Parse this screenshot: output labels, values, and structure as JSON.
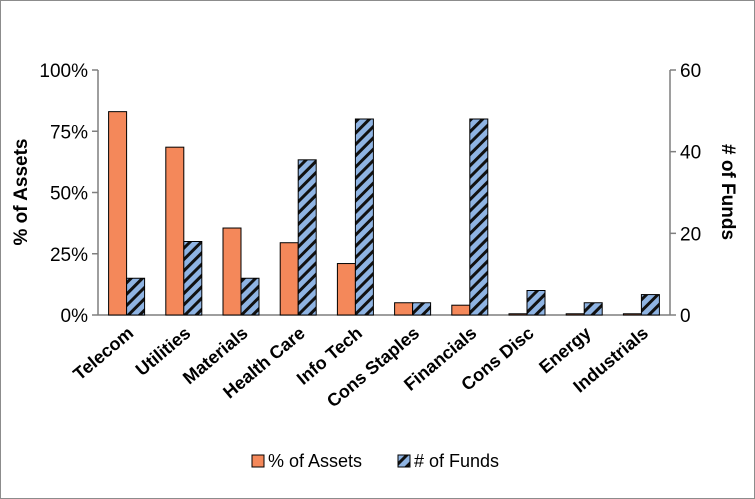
{
  "chart_data": {
    "type": "bar",
    "categories": [
      "Telecom",
      "Utilities",
      "Materials",
      "Health Care",
      "Info Tech",
      "Cons Staples",
      "Financials",
      "Cons Disc",
      "Energy",
      "Industrials"
    ],
    "series": [
      {
        "name": "% of Assets",
        "axis": "left",
        "color": "#f4885a",
        "values": [
          83,
          68.5,
          35.5,
          29.5,
          21,
          5,
          4,
          0.5,
          0.5,
          0.5
        ]
      },
      {
        "name": "# of Funds",
        "axis": "right",
        "color": "#8fb4e3",
        "pattern": "dark diagonal stripes",
        "values": [
          9,
          18,
          9,
          38,
          48,
          3,
          48,
          6,
          3,
          5
        ]
      }
    ],
    "ylabel": "% of Assets",
    "ylabel_right": "# of Funds",
    "ylim": [
      0,
      100
    ],
    "ylim_right": [
      0,
      60
    ],
    "yticks": [
      "0%",
      "25%",
      "50%",
      "75%",
      "100%"
    ],
    "yticks_right": [
      "0",
      "20",
      "40",
      "60"
    ],
    "grid": false,
    "legend": "bottom"
  }
}
